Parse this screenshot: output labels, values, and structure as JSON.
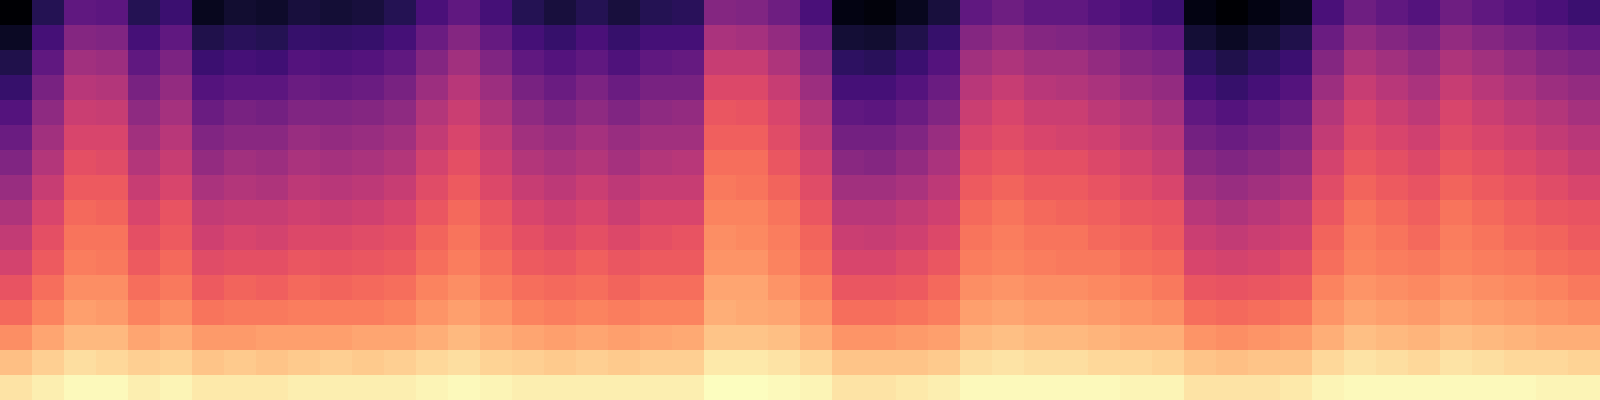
{
  "chart_data": {
    "type": "heatmap",
    "color": "magma",
    "tick_labels": false,
    "frames": [
      [
        86,
        79,
        70,
        63,
        58,
        53,
        49,
        45,
        40,
        35,
        30,
        25,
        19,
        14,
        8,
        2
      ],
      [
        88,
        82,
        74,
        68,
        64,
        60,
        57,
        54,
        50,
        46,
        42,
        38,
        33,
        28,
        22,
        15
      ],
      [
        90,
        85,
        78,
        73,
        70,
        67,
        65,
        63,
        60,
        57,
        54,
        51,
        47,
        42,
        36,
        28
      ],
      [
        90,
        84,
        78,
        72,
        70,
        66,
        65,
        62,
        60,
        56,
        54,
        50,
        46,
        41,
        35,
        27
      ],
      [
        88,
        82,
        74,
        68,
        64,
        60,
        57,
        54,
        50,
        46,
        42,
        38,
        33,
        28,
        22,
        15
      ],
      [
        89,
        83,
        76,
        70,
        66,
        63,
        60,
        58,
        54,
        50,
        47,
        43,
        39,
        34,
        28,
        20
      ],
      [
        87,
        80,
        72,
        65,
        60,
        56,
        52,
        49,
        44,
        39,
        35,
        30,
        25,
        20,
        14,
        7
      ],
      [
        87,
        81,
        72,
        66,
        62,
        57,
        54,
        50,
        46,
        42,
        37,
        33,
        27,
        22,
        16,
        10
      ],
      [
        87,
        80,
        73,
        66,
        61,
        57,
        53,
        50,
        45,
        41,
        37,
        32,
        27,
        21,
        15,
        9
      ],
      [
        88,
        81,
        73,
        67,
        63,
        59,
        55,
        52,
        48,
        44,
        40,
        35,
        30,
        25,
        19,
        12
      ],
      [
        88,
        82,
        73,
        67,
        62,
        58,
        55,
        51,
        47,
        43,
        39,
        35,
        29,
        24,
        18,
        11
      ],
      [
        88,
        81,
        74,
        67,
        63,
        59,
        56,
        52,
        48,
        44,
        40,
        36,
        30,
        25,
        19,
        12
      ],
      [
        88,
        82,
        74,
        68,
        64,
        60,
        57,
        54,
        50,
        46,
        42,
        38,
        33,
        28,
        22,
        15
      ],
      [
        89,
        84,
        76,
        71,
        68,
        64,
        62,
        59,
        56,
        53,
        49,
        46,
        41,
        36,
        30,
        23
      ],
      [
        90,
        85,
        78,
        73,
        70,
        67,
        65,
        63,
        60,
        57,
        54,
        51,
        47,
        42,
        36,
        28
      ],
      [
        89,
        83,
        76,
        71,
        67,
        64,
        61,
        59,
        55,
        52,
        49,
        45,
        41,
        35,
        29,
        22
      ],
      [
        88,
        82,
        74,
        68,
        64,
        60,
        57,
        54,
        50,
        46,
        42,
        38,
        33,
        28,
        22,
        15
      ],
      [
        88,
        81,
        73,
        67,
        63,
        59,
        55,
        52,
        48,
        44,
        40,
        35,
        30,
        25,
        19,
        12
      ],
      [
        88,
        82,
        74,
        68,
        64,
        61,
        57,
        54,
        51,
        46,
        43,
        38,
        34,
        28,
        23,
        15
      ],
      [
        88,
        81,
        73,
        67,
        62,
        59,
        55,
        51,
        48,
        43,
        40,
        35,
        30,
        24,
        19,
        12
      ],
      [
        88,
        82,
        74,
        68,
        64,
        60,
        57,
        54,
        50,
        46,
        42,
        38,
        33,
        28,
        22,
        15
      ],
      [
        88,
        82,
        75,
        68,
        64,
        60,
        58,
        54,
        50,
        47,
        42,
        39,
        33,
        29,
        22,
        16
      ],
      [
        91,
        87,
        80,
        76,
        74,
        71,
        70,
        68,
        66,
        64,
        61,
        59,
        55,
        50,
        44,
        36
      ],
      [
        91,
        87,
        80,
        75,
        74,
        71,
        69,
        68,
        65,
        64,
        61,
        58,
        55,
        50,
        43,
        35
      ],
      [
        90,
        86,
        79,
        74,
        71,
        68,
        67,
        65,
        62,
        59,
        56,
        54,
        50,
        45,
        39,
        31
      ],
      [
        89,
        84,
        76,
        71,
        68,
        64,
        62,
        59,
        56,
        53,
        49,
        46,
        41,
        36,
        30,
        23
      ],
      [
        86,
        80,
        71,
        64,
        59,
        54,
        51,
        47,
        42,
        37,
        32,
        28,
        22,
        17,
        11,
        5
      ],
      [
        86,
        80,
        71,
        64,
        59,
        54,
        50,
        47,
        42,
        36,
        32,
        27,
        22,
        16,
        10,
        4
      ],
      [
        87,
        80,
        72,
        65,
        60,
        56,
        52,
        49,
        44,
        39,
        35,
        30,
        25,
        20,
        14,
        7
      ],
      [
        88,
        81,
        73,
        67,
        63,
        59,
        55,
        52,
        48,
        44,
        40,
        35,
        30,
        25,
        19,
        12
      ],
      [
        90,
        85,
        78,
        73,
        70,
        67,
        65,
        63,
        60,
        57,
        54,
        51,
        47,
        42,
        36,
        28
      ],
      [
        90,
        86,
        79,
        74,
        71,
        68,
        67,
        65,
        62,
        59,
        56,
        54,
        50,
        45,
        39,
        31
      ],
      [
        90,
        85,
        78,
        73,
        70,
        67,
        65,
        63,
        60,
        57,
        54,
        51,
        47,
        42,
        36,
        28
      ],
      [
        90,
        85,
        78,
        73,
        70,
        66,
        65,
        62,
        60,
        57,
        53,
        51,
        46,
        42,
        35,
        28
      ],
      [
        90,
        84,
        77,
        72,
        69,
        66,
        63,
        61,
        58,
        55,
        52,
        48,
        44,
        39,
        33,
        25
      ],
      [
        89,
        84,
        76,
        71,
        68,
        64,
        62,
        59,
        56,
        53,
        49,
        46,
        41,
        36,
        30,
        23
      ],
      [
        89,
        83,
        76,
        70,
        66,
        63,
        60,
        58,
        54,
        50,
        47,
        43,
        39,
        34,
        28,
        20
      ],
      [
        86,
        80,
        71,
        64,
        59,
        54,
        51,
        47,
        42,
        37,
        32,
        28,
        22,
        17,
        11,
        5
      ],
      [
        86,
        79,
        70,
        63,
        58,
        53,
        49,
        45,
        40,
        35,
        30,
        25,
        19,
        14,
        8,
        2
      ],
      [
        86,
        80,
        71,
        64,
        59,
        54,
        51,
        47,
        42,
        37,
        32,
        28,
        22,
        17,
        11,
        5
      ],
      [
        87,
        80,
        72,
        65,
        60,
        56,
        52,
        49,
        44,
        39,
        35,
        30,
        25,
        20,
        14,
        7
      ],
      [
        89,
        84,
        76,
        71,
        68,
        64,
        62,
        59,
        56,
        53,
        49,
        46,
        41,
        36,
        30,
        23
      ],
      [
        90,
        86,
        79,
        74,
        71,
        68,
        67,
        65,
        62,
        59,
        56,
        54,
        50,
        45,
        39,
        31
      ],
      [
        90,
        85,
        78,
        73,
        70,
        67,
        65,
        63,
        60,
        57,
        54,
        51,
        47,
        42,
        36,
        28
      ],
      [
        90,
        84,
        77,
        72,
        69,
        66,
        63,
        61,
        58,
        55,
        52,
        48,
        44,
        39,
        33,
        25
      ],
      [
        90,
        86,
        79,
        74,
        71,
        68,
        67,
        65,
        62,
        59,
        56,
        54,
        50,
        45,
        39,
        31
      ],
      [
        90,
        85,
        78,
        73,
        70,
        67,
        65,
        63,
        60,
        57,
        54,
        51,
        47,
        42,
        36,
        28
      ],
      [
        90,
        84,
        77,
        72,
        69,
        66,
        63,
        61,
        58,
        55,
        52,
        48,
        44,
        39,
        33,
        25
      ],
      [
        89,
        84,
        76,
        71,
        68,
        64,
        62,
        59,
        56,
        53,
        49,
        46,
        41,
        36,
        30,
        23
      ],
      [
        89,
        83,
        76,
        70,
        66,
        63,
        60,
        58,
        54,
        50,
        47,
        43,
        39,
        34,
        28,
        20
      ]
    ]
  }
}
